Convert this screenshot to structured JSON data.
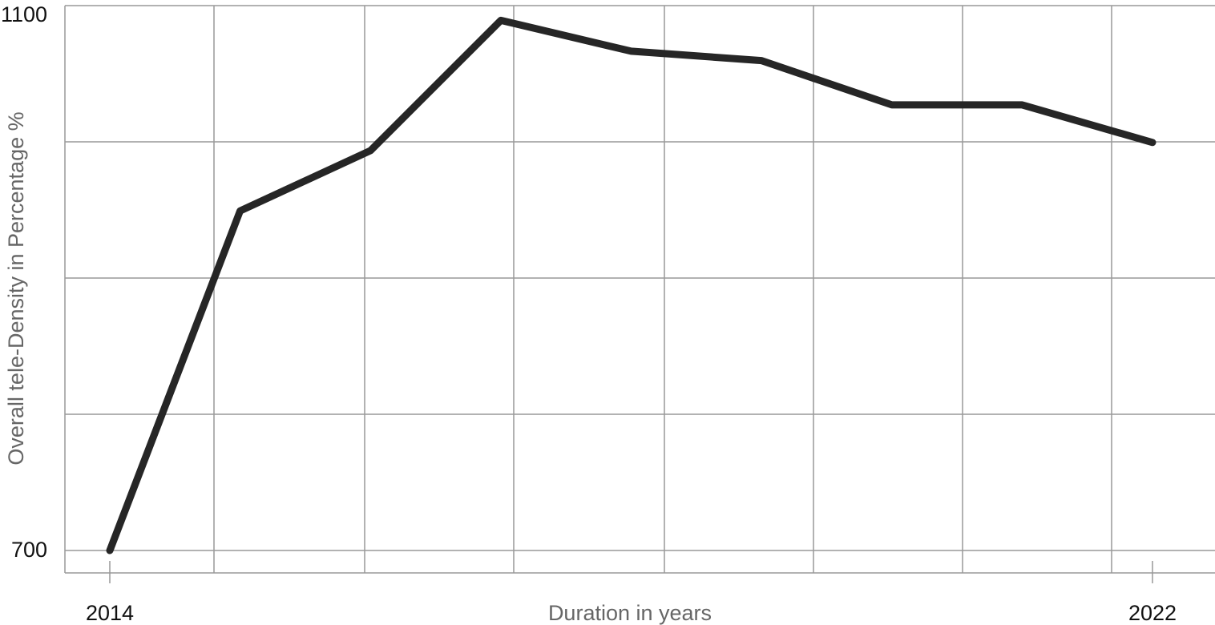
{
  "chart_data": {
    "type": "line",
    "xlabel": "Duration in years",
    "ylabel": "Overall tele-Density in Percentage %",
    "x_tick_labels": [
      "2014",
      "2022"
    ],
    "y_tick_labels": [
      "1100",
      "700"
    ],
    "x_range": [
      2014,
      2022
    ],
    "y_range": [
      700,
      1100
    ],
    "grid": true,
    "legend": "none",
    "line_color": "#262626",
    "grid_color": "#999999",
    "series": [
      {
        "x": [
          2014,
          2015,
          2016,
          2017,
          2018,
          2019,
          2020,
          2021,
          2022
        ],
        "values": [
          700,
          953,
          998,
          1095,
          1072,
          1065,
          1032,
          1032,
          1004
        ]
      }
    ]
  }
}
